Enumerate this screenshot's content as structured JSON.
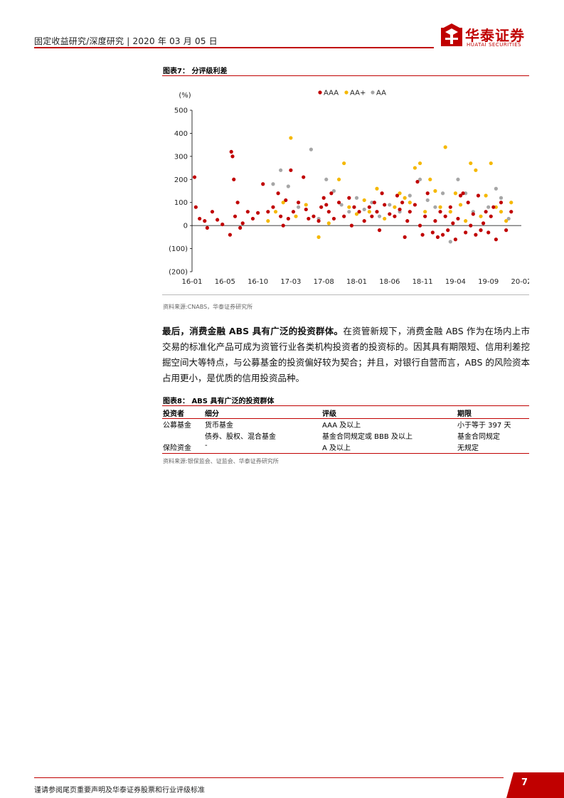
{
  "header": {
    "text": "固定收益研究/深度研究 | 2020 年 03 月 05 日",
    "logo_cn": "华泰证券",
    "logo_en": "HUATAI SECURITIES"
  },
  "figure7": {
    "title": "图表7：  分评级利差",
    "source": "资料来源:CNABS，华泰证券研究所"
  },
  "chart_data": {
    "type": "scatter",
    "title": "",
    "ylabel": "(%)",
    "xlabel": "",
    "ylim": [
      -200,
      500
    ],
    "yticks": [
      500,
      400,
      300,
      200,
      100,
      0,
      -100,
      -200
    ],
    "ytick_labels": [
      "500",
      "400",
      "300",
      "200",
      "100",
      "0",
      "(100)",
      "(200)"
    ],
    "x_categories": [
      "16-01",
      "16-05",
      "16-10",
      "17-03",
      "17-08",
      "18-01",
      "18-06",
      "18-11",
      "19-04",
      "19-09",
      "20-02"
    ],
    "legend_position": "top-center",
    "grid": false,
    "colors": {
      "AAA": "#c00000",
      "AA+": "#f5b800",
      "AA": "#a6a6a6"
    },
    "series": [
      {
        "name": "AAA",
        "points": [
          [
            0.1,
            210
          ],
          [
            0.15,
            80
          ],
          [
            0.3,
            30
          ],
          [
            0.5,
            20
          ],
          [
            0.6,
            -10
          ],
          [
            0.8,
            60
          ],
          [
            1.0,
            25
          ],
          [
            1.2,
            5
          ],
          [
            1.5,
            -40
          ],
          [
            1.55,
            320
          ],
          [
            1.6,
            300
          ],
          [
            1.65,
            200
          ],
          [
            1.7,
            40
          ],
          [
            1.8,
            100
          ],
          [
            1.9,
            -10
          ],
          [
            2.0,
            10
          ],
          [
            2.2,
            60
          ],
          [
            2.4,
            30
          ],
          [
            2.6,
            55
          ],
          [
            2.8,
            180
          ],
          [
            3.0,
            60
          ],
          [
            3.2,
            80
          ],
          [
            3.4,
            140
          ],
          [
            3.5,
            40
          ],
          [
            3.6,
            0
          ],
          [
            3.7,
            110
          ],
          [
            3.8,
            30
          ],
          [
            3.9,
            240
          ],
          [
            4.0,
            60
          ],
          [
            4.2,
            100
          ],
          [
            4.4,
            210
          ],
          [
            4.5,
            70
          ],
          [
            4.6,
            30
          ],
          [
            4.8,
            40
          ],
          [
            5.0,
            20
          ],
          [
            5.1,
            80
          ],
          [
            5.2,
            120
          ],
          [
            5.3,
            90
          ],
          [
            5.4,
            60
          ],
          [
            5.5,
            140
          ],
          [
            5.6,
            30
          ],
          [
            5.8,
            100
          ],
          [
            6.0,
            40
          ],
          [
            6.2,
            120
          ],
          [
            6.3,
            0
          ],
          [
            6.4,
            80
          ],
          [
            6.6,
            60
          ],
          [
            6.8,
            20
          ],
          [
            7.0,
            80
          ],
          [
            7.1,
            40
          ],
          [
            7.2,
            100
          ],
          [
            7.3,
            60
          ],
          [
            7.4,
            -20
          ],
          [
            7.5,
            140
          ],
          [
            7.6,
            90
          ],
          [
            7.8,
            50
          ],
          [
            8.0,
            40
          ],
          [
            8.1,
            130
          ],
          [
            8.2,
            70
          ],
          [
            8.3,
            100
          ],
          [
            8.4,
            -50
          ],
          [
            8.5,
            20
          ],
          [
            8.6,
            60
          ],
          [
            8.8,
            90
          ],
          [
            8.9,
            190
          ],
          [
            9.0,
            0
          ],
          [
            9.1,
            -40
          ],
          [
            9.2,
            40
          ],
          [
            9.3,
            140
          ],
          [
            9.5,
            -30
          ],
          [
            9.6,
            20
          ],
          [
            9.7,
            -50
          ],
          [
            9.8,
            60
          ],
          [
            9.9,
            -40
          ],
          [
            10.0,
            40
          ],
          [
            10.1,
            -20
          ],
          [
            10.2,
            80
          ],
          [
            10.3,
            10
          ],
          [
            10.4,
            -60
          ],
          [
            10.5,
            30
          ],
          [
            10.6,
            130
          ],
          [
            10.7,
            140
          ],
          [
            10.8,
            -30
          ],
          [
            10.9,
            100
          ],
          [
            11.0,
            0
          ],
          [
            11.1,
            50
          ],
          [
            11.2,
            -40
          ],
          [
            11.3,
            130
          ],
          [
            11.4,
            -20
          ],
          [
            11.5,
            10
          ],
          [
            11.6,
            60
          ],
          [
            11.7,
            -30
          ],
          [
            11.8,
            40
          ],
          [
            11.9,
            80
          ],
          [
            12.0,
            -60
          ],
          [
            12.2,
            100
          ],
          [
            12.4,
            -20
          ],
          [
            12.6,
            60
          ]
        ]
      },
      {
        "name": "AA+",
        "points": [
          [
            3.0,
            20
          ],
          [
            3.3,
            60
          ],
          [
            3.6,
            100
          ],
          [
            3.9,
            380
          ],
          [
            4.1,
            40
          ],
          [
            4.5,
            90
          ],
          [
            5.0,
            -50
          ],
          [
            5.4,
            10
          ],
          [
            5.8,
            200
          ],
          [
            6.0,
            270
          ],
          [
            6.2,
            80
          ],
          [
            6.5,
            50
          ],
          [
            6.8,
            110
          ],
          [
            7.0,
            60
          ],
          [
            7.3,
            160
          ],
          [
            7.6,
            30
          ],
          [
            8.0,
            80
          ],
          [
            8.2,
            140
          ],
          [
            8.4,
            120
          ],
          [
            8.6,
            100
          ],
          [
            8.8,
            250
          ],
          [
            9.0,
            270
          ],
          [
            9.2,
            60
          ],
          [
            9.4,
            200
          ],
          [
            9.6,
            150
          ],
          [
            9.8,
            80
          ],
          [
            10.0,
            340
          ],
          [
            10.2,
            60
          ],
          [
            10.4,
            140
          ],
          [
            10.6,
            90
          ],
          [
            10.8,
            20
          ],
          [
            11.0,
            270
          ],
          [
            11.2,
            240
          ],
          [
            11.4,
            40
          ],
          [
            11.6,
            130
          ],
          [
            11.8,
            270
          ],
          [
            12.0,
            80
          ],
          [
            12.2,
            60
          ],
          [
            12.4,
            20
          ],
          [
            12.6,
            100
          ]
        ]
      },
      {
        "name": "AA",
        "points": [
          [
            3.2,
            180
          ],
          [
            3.5,
            240
          ],
          [
            3.8,
            170
          ],
          [
            4.2,
            80
          ],
          [
            4.7,
            330
          ],
          [
            5.0,
            30
          ],
          [
            5.3,
            200
          ],
          [
            5.6,
            150
          ],
          [
            5.9,
            90
          ],
          [
            6.2,
            60
          ],
          [
            6.5,
            120
          ],
          [
            6.8,
            70
          ],
          [
            7.1,
            100
          ],
          [
            7.4,
            40
          ],
          [
            7.8,
            90
          ],
          [
            8.2,
            60
          ],
          [
            8.6,
            130
          ],
          [
            9.0,
            200
          ],
          [
            9.3,
            110
          ],
          [
            9.6,
            80
          ],
          [
            9.9,
            140
          ],
          [
            10.2,
            -70
          ],
          [
            10.5,
            200
          ],
          [
            10.8,
            140
          ],
          [
            11.1,
            60
          ],
          [
            11.4,
            -20
          ],
          [
            11.7,
            80
          ],
          [
            12.0,
            160
          ],
          [
            12.2,
            120
          ],
          [
            12.5,
            30
          ]
        ]
      }
    ]
  },
  "paragraph": {
    "lead": "最后，消费金融 ABS 具有广泛的投资群体。",
    "body": "在资管新规下，消费金融 ABS 作为在场内上市交易的标准化产品可成为资管行业各类机构投资者的投资标的。因其具有期限短、信用利差挖掘空间大等特点，与公募基金的投资偏好较为契合；并且，对银行自营而言，ABS 的风险资本占用更小，是优质的信用投资品种。"
  },
  "figure8": {
    "title": "图表8：  ABS 具有广泛的投资群体",
    "headers": [
      "投资者",
      "细分",
      "评级",
      "期限"
    ],
    "rows": [
      [
        "公募基金",
        "货币基金",
        "AAA 及以上",
        "小于等于 397 天"
      ],
      [
        "",
        "债券、股权、混合基金",
        "基金合同规定或 BBB 及以上",
        "基金合同规定"
      ],
      [
        "保险资金",
        "-",
        "A 及以上",
        "无规定"
      ]
    ],
    "source": "资料来源:银保监会、证监会、华泰证券研究所"
  },
  "footer": {
    "text": "谨请参阅尾页重要声明及华泰证券股票和行业评级标准",
    "page": "7"
  }
}
